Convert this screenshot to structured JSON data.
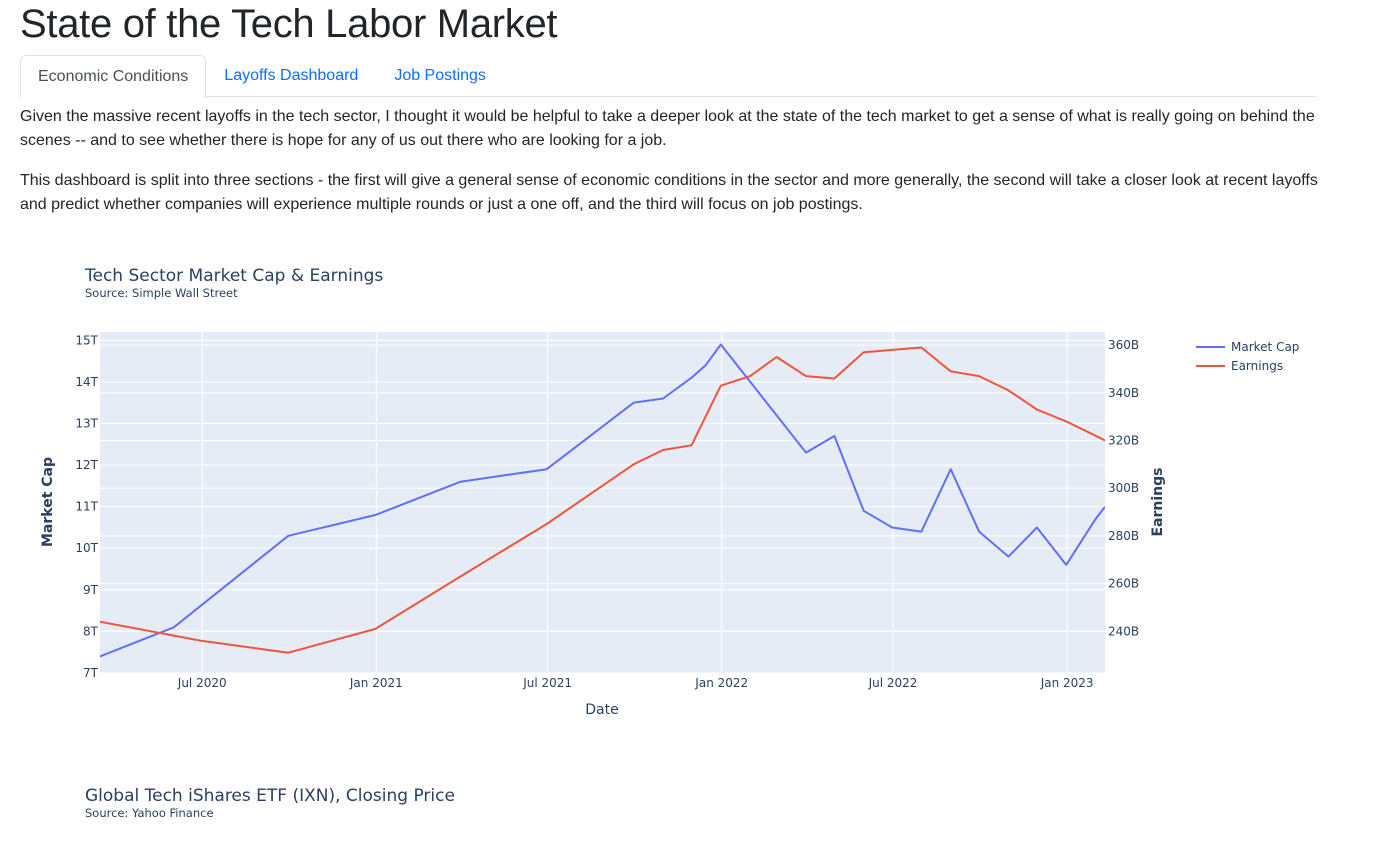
{
  "page": {
    "title": "State of the Tech Labor Market"
  },
  "tabs": [
    {
      "label": "Economic Conditions",
      "active": true
    },
    {
      "label": "Layoffs Dashboard",
      "active": false
    },
    {
      "label": "Job Postings",
      "active": false
    }
  ],
  "intro": {
    "p1": "Given the massive recent layoffs in the tech sector, I thought it would be helpful to take a deeper look at the state of the tech market to get a sense of what is really going on behind the scenes -- and to see whether there is hope for any of us out there who are looking for a job.",
    "p2": "This dashboard is split into three sections - the first will give a general sense of economic conditions in the sector and more generally, the second will take a closer look at recent layoffs and predict whether companies will experience multiple rounds or just a one off, and the third will focus on job postings."
  },
  "chart1": {
    "title": "Tech Sector Market Cap & Earnings",
    "source": "Source: Simple Wall Street"
  },
  "chart2": {
    "title": "Global Tech iShares ETF (IXN), Closing Price",
    "source": "Source: Yahoo Finance"
  },
  "colors": {
    "market_cap": "#636efa",
    "earnings": "#ef553b",
    "plot_bg": "#e5ecf6",
    "text": "#2a3f5f",
    "link": "#0d6efd"
  },
  "chart_data": {
    "type": "line",
    "title": "Tech Sector Market Cap & Earnings",
    "xlabel": "Date",
    "ylabel": "Market Cap",
    "y2label": "Earnings",
    "x_ticks": [
      "Jul 2020",
      "Jan 2021",
      "Jul 2021",
      "Jan 2022",
      "Jul 2022",
      "Jan 2023"
    ],
    "y_ticks": [
      "7T",
      "8T",
      "9T",
      "10T",
      "11T",
      "12T",
      "13T",
      "14T",
      "15T"
    ],
    "y2_ticks": [
      "240B",
      "260B",
      "280B",
      "300B",
      "320B",
      "340B",
      "360B"
    ],
    "xlim": [
      "2020-03-15",
      "2023-02-10"
    ],
    "ylim": [
      7,
      15.2
    ],
    "y2lim": [
      222.5,
      365.5
    ],
    "legend": "top-right",
    "grid": true,
    "series": [
      {
        "name": "Market Cap",
        "axis": "y",
        "x": [
          "2020-03-15",
          "2020-06-01",
          "2020-09-30",
          "2020-12-31",
          "2021-03-31",
          "2021-06-30",
          "2021-09-30",
          "2021-10-31",
          "2021-11-30",
          "2021-12-15",
          "2021-12-31",
          "2022-03-31",
          "2022-04-30",
          "2022-05-31",
          "2022-06-30",
          "2022-07-31",
          "2022-08-31",
          "2022-09-30",
          "2022-10-31",
          "2022-11-30",
          "2022-12-31",
          "2023-01-31",
          "2023-02-10"
        ],
        "values": [
          7.4,
          8.1,
          10.3,
          10.8,
          11.6,
          11.9,
          13.5,
          13.6,
          14.1,
          14.4,
          14.9,
          12.3,
          12.7,
          10.9,
          10.5,
          10.4,
          11.9,
          10.4,
          9.8,
          10.5,
          9.6,
          10.7,
          11.0
        ]
      },
      {
        "name": "Earnings",
        "axis": "y2",
        "x": [
          "2020-03-15",
          "2020-06-30",
          "2020-09-30",
          "2020-12-31",
          "2021-03-31",
          "2021-06-30",
          "2021-09-30",
          "2021-10-31",
          "2021-11-30",
          "2021-12-31",
          "2022-01-31",
          "2022-02-28",
          "2022-03-31",
          "2022-04-30",
          "2022-05-31",
          "2022-06-30",
          "2022-07-31",
          "2022-08-31",
          "2022-09-30",
          "2022-10-31",
          "2022-11-30",
          "2022-12-31",
          "2023-01-31",
          "2023-02-10"
        ],
        "values": [
          244,
          236,
          231,
          241,
          263,
          285,
          310,
          316,
          318,
          343,
          347,
          355,
          347,
          346,
          357,
          358,
          359,
          349,
          347,
          341,
          333,
          328,
          322,
          320
        ]
      }
    ]
  }
}
